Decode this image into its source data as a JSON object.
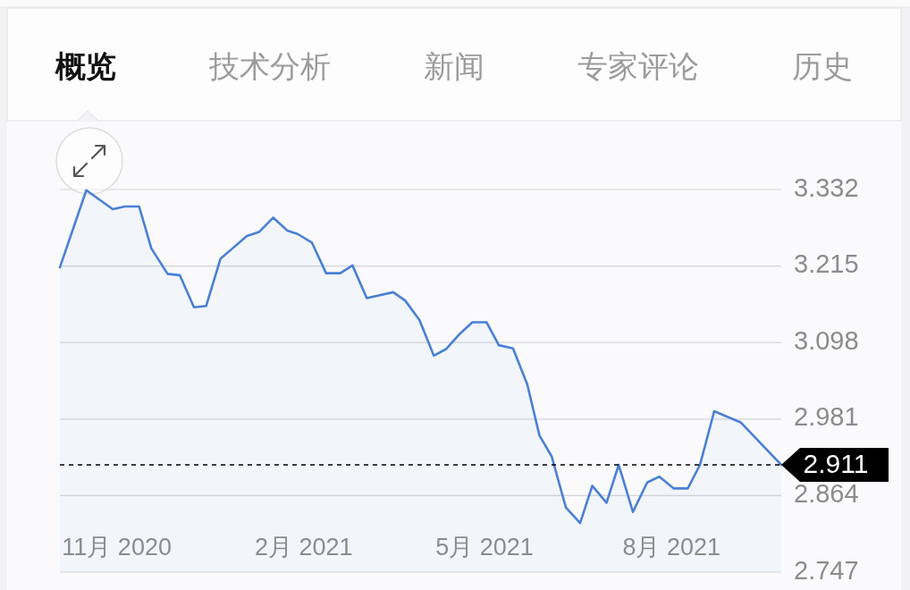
{
  "chart_data": {
    "type": "area",
    "annotations": [
      "概览",
      "技术分析",
      "新闻",
      "专家评论",
      "历史"
    ],
    "x": [
      "2020-10-04",
      "2020-10-17",
      "2020-10-30",
      "2020-11-05",
      "2020-11-12",
      "2020-11-18",
      "2020-11-26",
      "2020-12-02",
      "2020-12-09",
      "2020-12-15",
      "2020-12-22",
      "2021-01-04",
      "2021-01-10",
      "2021-01-17",
      "2021-01-24",
      "2021-01-29",
      "2021-02-05",
      "2021-02-12",
      "2021-02-19",
      "2021-02-25",
      "2021-03-04",
      "2021-03-17",
      "2021-03-23",
      "2021-03-30",
      "2021-04-06",
      "2021-04-12",
      "2021-04-19",
      "2021-04-25",
      "2021-05-02",
      "2021-05-08",
      "2021-05-15",
      "2021-05-22",
      "2021-05-28",
      "2021-06-03",
      "2021-06-10",
      "2021-06-17",
      "2021-06-23",
      "2021-06-30",
      "2021-07-06",
      "2021-07-13",
      "2021-07-20",
      "2021-07-26",
      "2021-08-02",
      "2021-08-09",
      "2021-08-15",
      "2021-08-22",
      "2021-09-04",
      "2021-09-24"
    ],
    "series": [
      {
        "color": "#4a80d4",
        "values": [
          3.213,
          3.331,
          3.302,
          3.306,
          3.306,
          3.242,
          3.203,
          3.201,
          3.152,
          3.154,
          3.226,
          3.261,
          3.267,
          3.289,
          3.269,
          3.264,
          3.251,
          3.204,
          3.204,
          3.216,
          3.166,
          3.175,
          3.162,
          3.132,
          3.078,
          3.088,
          3.112,
          3.129,
          3.129,
          3.094,
          3.089,
          3.034,
          2.956,
          2.924,
          2.846,
          2.822,
          2.879,
          2.853,
          2.911,
          2.839,
          2.884,
          2.893,
          2.875,
          2.875,
          2.911,
          2.993,
          2.976,
          2.911
        ]
      }
    ],
    "xlim": [
      "2020-10-04",
      "2021-09-24"
    ],
    "xticks": [
      {
        "value": "2020-11-01",
        "label": "11月 2020"
      },
      {
        "value": "2021-02-01",
        "label": "2月 2021"
      },
      {
        "value": "2021-05-01",
        "label": "5月 2021"
      },
      {
        "value": "2021-08-01",
        "label": "8月 2021"
      }
    ],
    "ylim": [
      2.747,
      3.332
    ],
    "yticks": [
      2.747,
      2.864,
      2.981,
      3.098,
      3.215,
      3.332
    ],
    "grid": "y",
    "line_style": "solid",
    "ref_lines": [
      {
        "axis": "y",
        "value": 2.911,
        "label": "2.911",
        "color": "#000000",
        "line_style": "dashed"
      }
    ]
  }
}
